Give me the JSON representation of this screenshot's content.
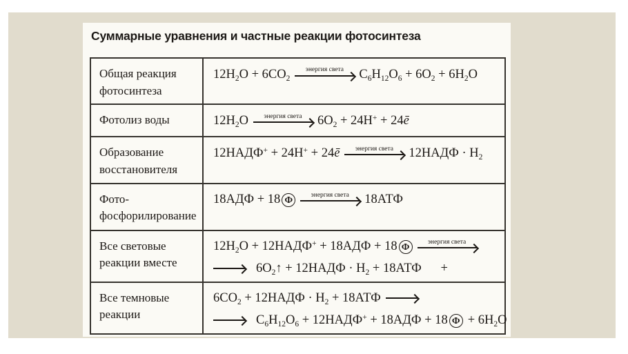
{
  "title": "Суммарные уравнения и частные реакции фотосинтеза",
  "arrow_label": "энергия света",
  "phi_symbol": "Ф",
  "colors": {
    "page_bg": "#ffffff",
    "mat_bg": "#e1dccd",
    "panel_bg": "#fbfaf5",
    "line": "#35322d",
    "ink": "#1b1714",
    "title_ink": "#1d1a17"
  },
  "rows": [
    {
      "label": "Общая реакция\nфотосинтеза",
      "lines": [
        [
          {
            "type": "formula",
            "value": "12H_2_O + 6CO_2_"
          },
          {
            "type": "arrow_labeled"
          },
          {
            "type": "formula",
            "value": "C_6_H_12_O_6_ + 6O_2_ + 6H_2_O"
          }
        ]
      ]
    },
    {
      "label": "Фотолиз воды",
      "lines": [
        [
          {
            "type": "formula",
            "value": "12H_2_O"
          },
          {
            "type": "arrow_labeled"
          },
          {
            "type": "formula",
            "value": "6O_2_ + 24H^+^ + 24~ē~"
          }
        ]
      ]
    },
    {
      "label": "Образование\nвосстановителя",
      "lines": [
        [
          {
            "type": "formula",
            "value": "12НАДФ^+^ + 24H^+^ + 24~ē~"
          },
          {
            "type": "arrow_labeled"
          },
          {
            "type": "formula",
            "value": "12НАДФ · H_2_"
          }
        ]
      ]
    },
    {
      "label": "Фото-\nфосфорилирование",
      "lines": [
        [
          {
            "type": "formula",
            "value": "18АДФ + 18"
          },
          {
            "type": "phi"
          },
          {
            "type": "arrow_labeled"
          },
          {
            "type": "formula",
            "value": "18АТФ"
          }
        ]
      ]
    },
    {
      "label": "Все световые\nреакции вместе",
      "lines": [
        [
          {
            "type": "formula",
            "value": "12H_2_O + 12НАДФ^+^ + 18АДФ + 18"
          },
          {
            "type": "phi"
          },
          {
            "type": "arrow_labeled"
          }
        ],
        [
          {
            "type": "arrow_plain"
          },
          {
            "type": "formula",
            "value": "6O_2_↑ + 12НАДФ · H_2_ + 18АТФ  +"
          }
        ]
      ]
    },
    {
      "label": "Все темновые\nреакции",
      "lines": [
        [
          {
            "type": "formula",
            "value": "6CO_2_ + 12НАДФ · H_2_ + 18АТФ"
          },
          {
            "type": "arrow_plain"
          }
        ],
        [
          {
            "type": "arrow_plain"
          },
          {
            "type": "formula",
            "value": "C_6_H_12_O_6_ + 12НАДФ^+^ + 18АДФ + 18"
          },
          {
            "type": "phi"
          },
          {
            "type": "formula",
            "value": "+ 6H_2_O"
          }
        ]
      ]
    }
  ]
}
